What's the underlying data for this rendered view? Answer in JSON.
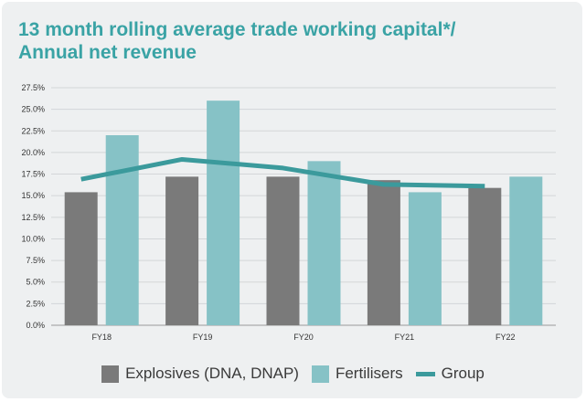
{
  "chart_data": {
    "type": "bar",
    "title_line1": "13 month rolling average trade working capital*/",
    "title_line2": "Annual net revenue",
    "categories": [
      "FY18",
      "FY19",
      "FY20",
      "FY21",
      "FY22"
    ],
    "series": [
      {
        "name": "Explosives (DNA, DNAP)",
        "type": "bar",
        "color": "#7a7a7a",
        "values": [
          15.4,
          17.2,
          17.2,
          16.8,
          15.9
        ]
      },
      {
        "name": "Fertilisers",
        "type": "bar",
        "color": "#86c2c6",
        "values": [
          22.0,
          26.0,
          19.0,
          15.4,
          17.2
        ]
      },
      {
        "name": "Group",
        "type": "line",
        "color": "#3b9a9c",
        "values": [
          16.9,
          19.2,
          18.2,
          16.3,
          16.1
        ]
      }
    ],
    "yticks": [
      "0.0%",
      "2.5%",
      "5.0%",
      "7.5%",
      "10.0%",
      "12.5%",
      "15.0%",
      "17.5%",
      "20.0%",
      "22.5%",
      "25.0%",
      "27.5%"
    ],
    "ylim": [
      0,
      27.5
    ],
    "grid": true,
    "legend_position": "bottom"
  }
}
